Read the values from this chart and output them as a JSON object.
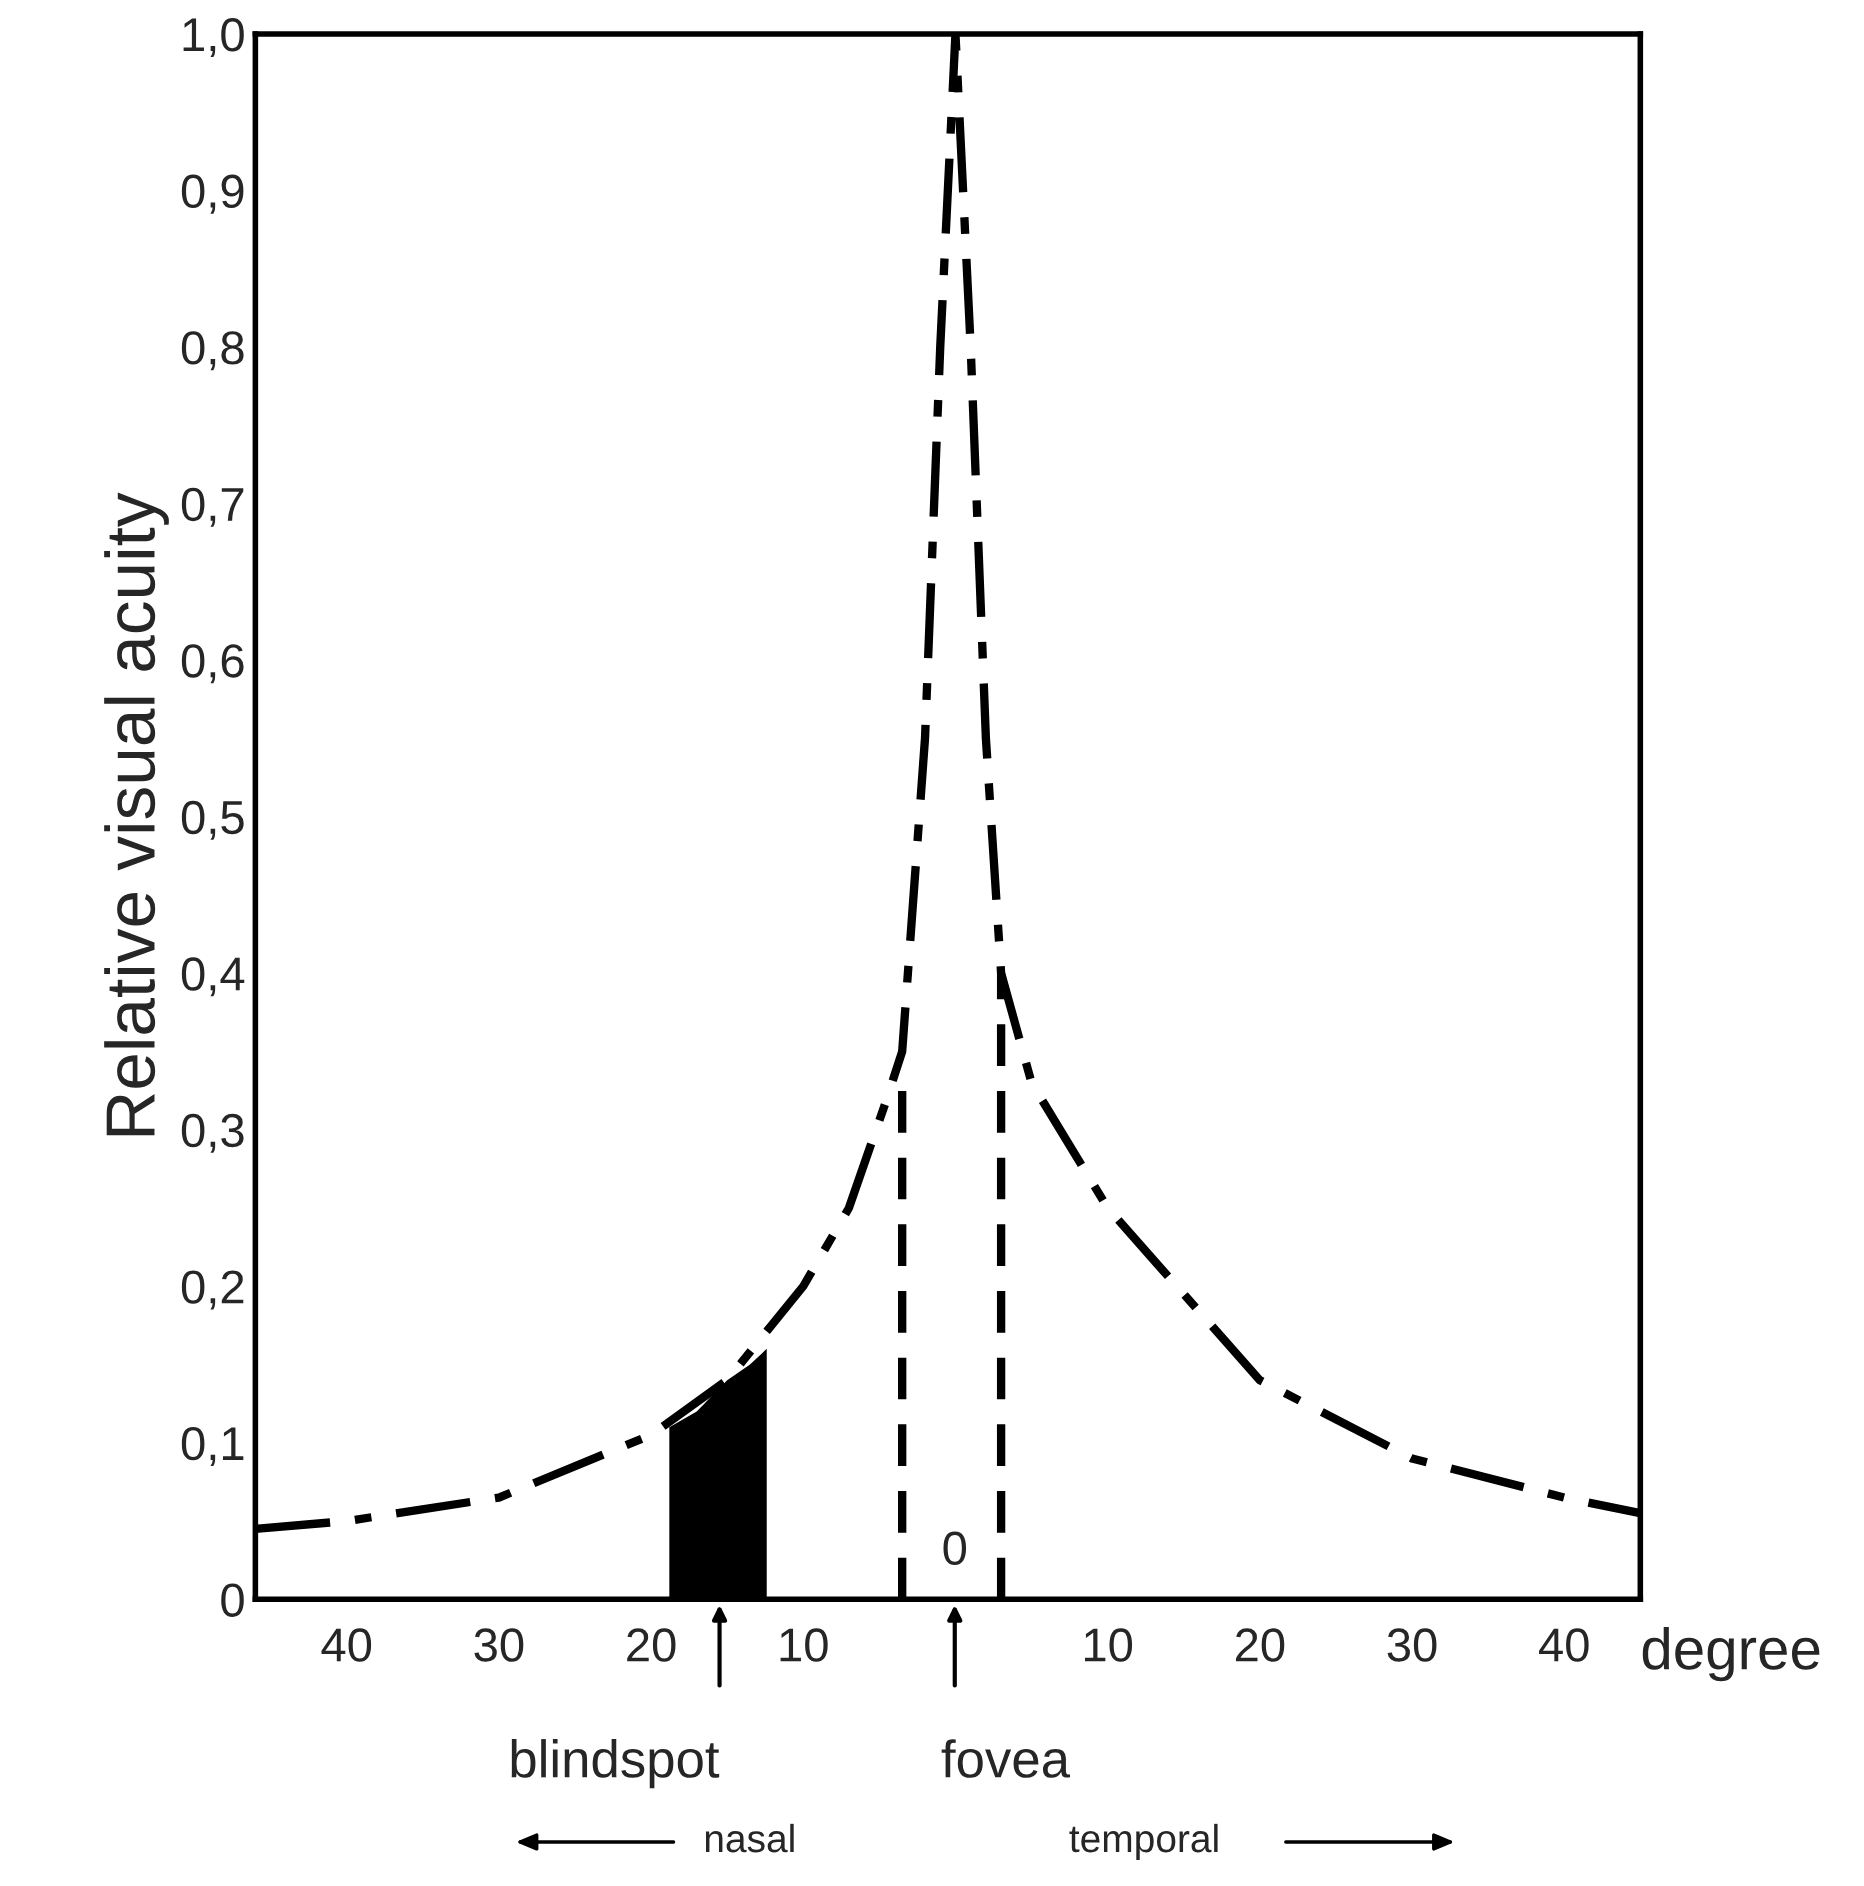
{
  "chart_data": {
    "type": "line",
    "ylabel": "Relative visual acuity",
    "xlabel": "degree",
    "series": [
      {
        "color": "#000000",
        "line_style": "dashed",
        "x": [
          -46,
          -40,
          -30,
          -20,
          -15,
          -10,
          -7,
          -4.5,
          -3.5,
          -2,
          -1,
          0,
          1,
          2,
          3,
          5,
          10,
          20,
          30,
          40,
          45
        ],
        "values": [
          0.045,
          0.05,
          0.065,
          0.105,
          0.14,
          0.2,
          0.25,
          0.32,
          0.35,
          0.55,
          0.8,
          1.0,
          0.8,
          0.55,
          0.4,
          0.33,
          0.25,
          0.14,
          0.09,
          0.065,
          0.055
        ]
      },
      {
        "type": "line",
        "color": "#000000",
        "line_style": "dotted",
        "x": [
          -3.5,
          -3.5
        ],
        "values": [
          0,
          0.33
        ]
      },
      {
        "type": "line",
        "color": "#000000",
        "line_style": "dotted",
        "x": [
          3,
          3
        ],
        "values": [
          0,
          0.4
        ]
      },
      {
        "type": "area",
        "color": "#000000",
        "x": [
          -18.8,
          -17,
          -15,
          -13.5,
          -12.4
        ],
        "values": [
          0.11,
          0.12,
          0.14,
          0.15,
          0.16
        ]
      }
    ],
    "xlim": [
      -46,
      45
    ],
    "xticks": [
      {
        "value": -40,
        "label": "40"
      },
      {
        "value": -30,
        "label": "30"
      },
      {
        "value": -20,
        "label": "20"
      },
      {
        "value": -10,
        "label": "10"
      },
      {
        "value": 10,
        "label": "10"
      },
      {
        "value": 20,
        "label": "20"
      },
      {
        "value": 30,
        "label": "30"
      },
      {
        "value": 40,
        "label": "40"
      }
    ],
    "ylim": [
      0,
      1.0
    ],
    "yticks": [
      0,
      {
        "value": 0.1,
        "label": "0,1"
      },
      {
        "value": 0.2,
        "label": "0,2"
      },
      {
        "value": 0.3,
        "label": "0,3"
      },
      {
        "value": 0.4,
        "label": "0,4"
      },
      {
        "value": 0.5,
        "label": "0,5"
      },
      {
        "value": 0.6,
        "label": "0,6"
      },
      {
        "value": 0.7,
        "label": "0,7"
      },
      {
        "value": 0.8,
        "label": "0,8"
      },
      {
        "value": 0.9,
        "label": "0,9"
      },
      {
        "value": 1.0,
        "label": "1,0"
      }
    ],
    "grid": false,
    "legend": false,
    "annotations": [
      {
        "text": "blindspot",
        "x": -15.5,
        "y": 0
      },
      "0",
      "fovea",
      "nasal",
      "temporal"
    ]
  }
}
